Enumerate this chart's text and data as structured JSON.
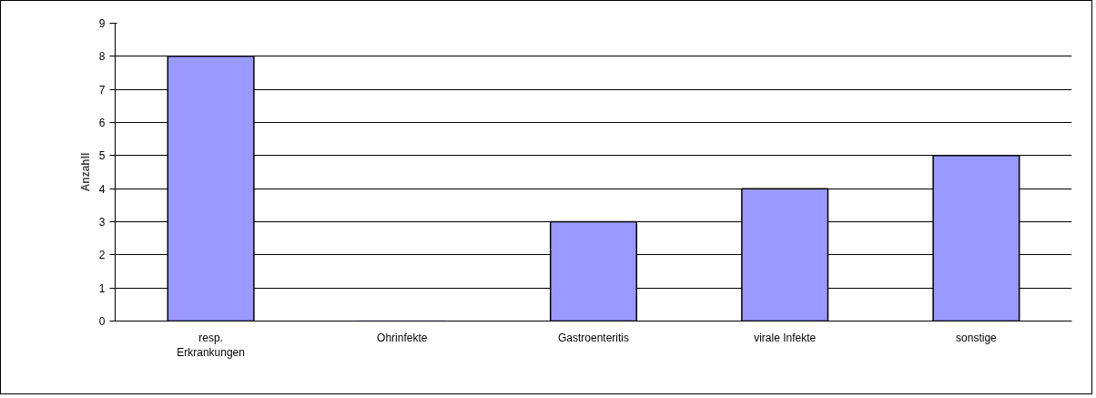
{
  "chart_data": {
    "type": "bar",
    "ylabel": "Anzahll",
    "categories": [
      "resp. Erkrankungen",
      "Ohrinfekte",
      "Gastroenteritis",
      "virale Infekte",
      "sonstige"
    ],
    "values": [
      8,
      0,
      3,
      4,
      5
    ],
    "color": "#9999ff",
    "ylim": [
      0,
      9
    ],
    "yticks": [
      0,
      1,
      2,
      3,
      4,
      5,
      6,
      7,
      8,
      9
    ],
    "grid": "y"
  }
}
